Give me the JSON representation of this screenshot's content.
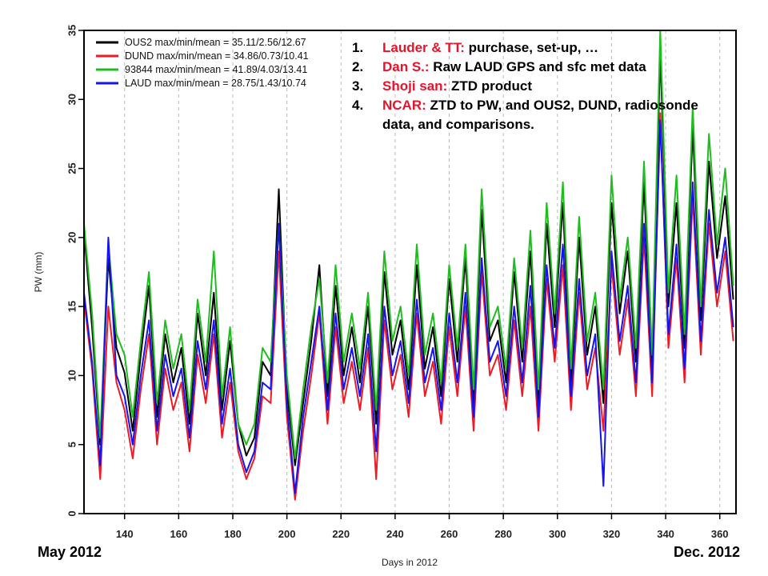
{
  "chart_data": {
    "type": "line",
    "title": "",
    "xlabel": "Days in 2012",
    "ylabel": "PW (mm)",
    "xlim": [
      125,
      366
    ],
    "ylim": [
      0,
      35
    ],
    "xticks": [
      140,
      160,
      180,
      200,
      220,
      240,
      260,
      280,
      300,
      320,
      340,
      360
    ],
    "yticks": [
      0,
      5,
      10,
      15,
      20,
      25,
      30,
      35
    ],
    "grid": "dashed vertical lines",
    "legend_position": "top-left",
    "x": [
      125,
      128,
      131,
      134,
      137,
      140,
      143,
      146,
      149,
      152,
      155,
      158,
      161,
      164,
      167,
      170,
      173,
      176,
      179,
      182,
      185,
      188,
      191,
      194,
      197,
      200,
      203,
      206,
      209,
      212,
      215,
      218,
      221,
      224,
      227,
      230,
      233,
      236,
      239,
      242,
      245,
      248,
      251,
      254,
      257,
      260,
      263,
      266,
      269,
      272,
      275,
      278,
      281,
      284,
      287,
      290,
      293,
      296,
      299,
      302,
      305,
      308,
      311,
      314,
      317,
      320,
      323,
      326,
      329,
      332,
      335,
      338,
      341,
      344,
      347,
      350,
      353,
      356,
      359,
      362,
      365
    ],
    "series": [
      {
        "name": "OUS2 max/min/mean = 35.11/2.56/12.67",
        "color": "#000000",
        "values": [
          20.5,
          13.5,
          5.0,
          18.5,
          12.0,
          10.2,
          6.0,
          11.5,
          16.5,
          7.0,
          13.0,
          9.5,
          12.0,
          6.5,
          14.5,
          10.0,
          16.0,
          7.5,
          12.5,
          6.5,
          4.2,
          5.5,
          11.0,
          10.0,
          23.5,
          9.0,
          3.5,
          8.0,
          12.5,
          18.0,
          8.5,
          16.5,
          10.0,
          13.5,
          9.5,
          15.0,
          6.5,
          17.5,
          11.5,
          14.0,
          9.0,
          18.0,
          10.5,
          13.5,
          8.5,
          17.0,
          11.0,
          18.5,
          8.0,
          22.0,
          12.5,
          14.0,
          9.5,
          17.5,
          11.0,
          19.0,
          8.0,
          21.0,
          13.5,
          22.5,
          9.5,
          20.0,
          11.5,
          15.0,
          8.0,
          22.5,
          14.5,
          19.0,
          11.0,
          24.0,
          10.5,
          33.5,
          15.0,
          22.5,
          12.0,
          28.0,
          14.0,
          25.5,
          18.5,
          23.0,
          15.5
        ]
      },
      {
        "name": "DUND max/min/mean = 34.86/0.73/10.41",
        "color": "#ee1b24",
        "values": [
          15.5,
          10.5,
          2.5,
          15.0,
          9.5,
          7.5,
          4.0,
          9.0,
          13.0,
          5.0,
          10.5,
          7.5,
          9.5,
          4.5,
          11.5,
          8.0,
          13.0,
          5.5,
          9.5,
          4.5,
          2.5,
          4.0,
          8.5,
          8.0,
          19.0,
          7.0,
          1.0,
          6.0,
          10.0,
          14.5,
          6.5,
          13.5,
          8.0,
          11.0,
          7.5,
          12.0,
          2.5,
          14.0,
          9.0,
          11.5,
          7.0,
          14.5,
          8.5,
          11.0,
          6.5,
          13.5,
          8.5,
          15.0,
          6.0,
          17.5,
          10.0,
          11.5,
          7.5,
          14.0,
          8.5,
          15.0,
          6.0,
          17.0,
          11.0,
          18.0,
          7.5,
          16.0,
          9.0,
          12.0,
          6.0,
          18.0,
          11.5,
          15.5,
          8.5,
          20.0,
          8.5,
          29.0,
          12.0,
          18.5,
          9.5,
          23.0,
          11.5,
          21.0,
          15.0,
          19.0,
          12.5
        ]
      },
      {
        "name": "93844 max/min/mean = 41.89/4.03/13.41",
        "color": "#1fbd1f",
        "values": [
          21.0,
          14.5,
          5.5,
          19.5,
          13.0,
          11.5,
          7.0,
          12.5,
          17.5,
          8.0,
          14.0,
          10.5,
          13.0,
          7.5,
          15.5,
          11.0,
          19.0,
          8.5,
          13.5,
          6.5,
          5.0,
          6.5,
          12.0,
          11.0,
          21.0,
          10.0,
          4.0,
          9.0,
          13.5,
          17.0,
          9.5,
          18.0,
          11.0,
          14.5,
          10.5,
          16.0,
          7.5,
          19.0,
          12.5,
          15.0,
          10.0,
          19.5,
          11.5,
          14.5,
          9.5,
          18.0,
          12.0,
          19.5,
          9.0,
          23.5,
          13.5,
          15.0,
          10.5,
          18.5,
          12.0,
          20.5,
          9.0,
          22.5,
          14.5,
          24.0,
          10.5,
          21.5,
          12.5,
          16.0,
          9.0,
          24.5,
          15.5,
          20.0,
          12.0,
          25.5,
          11.5,
          35.0,
          16.0,
          24.5,
          13.0,
          29.5,
          15.0,
          27.5,
          19.5,
          25.0,
          16.5
        ]
      },
      {
        "name": "LAUD max/min/mean = 28.75/1.43/10.74",
        "color": "#1414ee",
        "values": [
          16.0,
          11.0,
          3.5,
          20.0,
          10.0,
          8.5,
          5.0,
          10.0,
          14.0,
          6.0,
          11.5,
          8.5,
          10.5,
          5.5,
          12.5,
          9.0,
          14.0,
          6.5,
          10.5,
          5.0,
          3.0,
          4.5,
          9.5,
          9.0,
          21.0,
          8.0,
          1.5,
          7.0,
          11.0,
          15.0,
          7.5,
          14.5,
          9.0,
          12.0,
          8.5,
          13.0,
          4.5,
          15.0,
          10.0,
          12.5,
          8.0,
          15.5,
          9.5,
          12.0,
          7.5,
          14.5,
          9.5,
          16.0,
          7.0,
          18.5,
          11.0,
          12.5,
          8.5,
          15.0,
          9.5,
          16.5,
          7.0,
          18.0,
          12.0,
          19.5,
          8.5,
          17.0,
          10.0,
          13.0,
          2.0,
          19.0,
          12.5,
          16.5,
          9.5,
          21.0,
          9.5,
          28.5,
          13.0,
          19.5,
          10.5,
          24.0,
          12.5,
          22.0,
          16.0,
          20.0,
          13.5
        ]
      }
    ]
  },
  "notes": [
    {
      "num": "1.",
      "who": "Lauder & TT:",
      "text": " purchase, set-up, …"
    },
    {
      "num": "2.",
      "who": "Dan S.:",
      "text": " Raw LAUD GPS  and sfc met data"
    },
    {
      "num": "3.",
      "who": "Shoji san:",
      "text": " ZTD product"
    },
    {
      "num": "4.",
      "who": "NCAR:",
      "text": " ZTD to PW, and OUS2, DUND, radiosonde data, and comparisons."
    }
  ],
  "captions": {
    "left": "May 2012",
    "right": "Dec. 2012"
  }
}
